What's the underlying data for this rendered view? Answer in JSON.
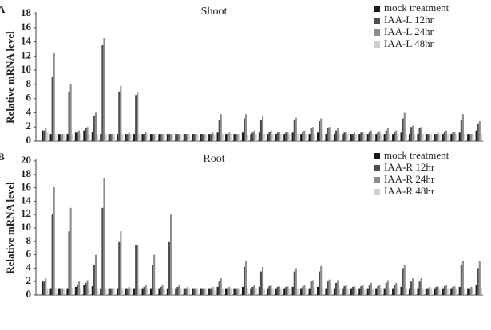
{
  "chart_data": [
    {
      "type": "bar",
      "panel": "A",
      "title": "Shoot",
      "y_label": "Relative mRNA level",
      "categories": [
        null,
        null,
        null,
        null,
        null,
        null,
        null,
        null,
        null,
        null,
        null,
        null,
        null,
        null,
        null,
        null,
        null,
        null,
        null,
        null,
        null,
        null,
        null,
        null,
        null,
        null,
        null,
        null,
        null,
        null,
        null,
        null,
        null,
        null,
        null,
        null,
        null,
        null,
        null,
        null,
        null,
        null,
        null,
        null,
        null,
        null,
        null,
        null,
        null,
        null,
        null,
        null,
        null
      ],
      "ylim": [
        0,
        18
      ],
      "yticks": [
        0,
        2,
        4,
        6,
        8,
        10,
        12,
        14,
        16,
        18
      ],
      "series": [
        {
          "name": "mock treatment",
          "color": "#1a1a1a",
          "values": [
            1.5,
            1,
            1,
            1,
            1.2,
            1.5,
            1.3,
            1,
            1,
            1,
            1,
            1,
            1,
            1,
            1,
            1,
            1,
            1,
            1,
            1,
            1,
            1.2,
            1,
            1,
            1.2,
            1,
            1.2,
            1,
            1,
            1,
            1.2,
            1,
            1,
            1.2,
            1,
            1,
            1,
            1,
            1,
            1,
            1,
            1,
            1,
            1.2,
            1,
            1,
            1,
            1,
            1,
            1,
            1.2,
            1,
            1.5
          ]
        },
        {
          "name": "IAA-L 12hr",
          "color": "#4d4d4d",
          "values": [
            1.5,
            9,
            1,
            7,
            1.2,
            1.8,
            3.5,
            13.5,
            1,
            7,
            1,
            6.5,
            1,
            1,
            1,
            1,
            1,
            1,
            1,
            1,
            1,
            3,
            1,
            1,
            3.2,
            1.2,
            3,
            1.3,
            1.2,
            1.2,
            3,
            1.3,
            1.8,
            2.8,
            1.8,
            1.5,
            1.2,
            1,
            1.2,
            1.3,
            1.2,
            1.5,
            1.3,
            3.2,
            2,
            1.8,
            1,
            1,
            1.3,
            1.2,
            3,
            1,
            2.5
          ]
        },
        {
          "name": "IAA-L 24hr",
          "color": "#8c8c8c",
          "values": [
            1.8,
            12.5,
            1,
            8,
            1.5,
            2,
            4,
            14.5,
            1,
            7.8,
            1.2,
            6.8,
            1.2,
            1,
            1,
            1,
            1,
            1,
            1,
            1,
            1.2,
            3.8,
            1.2,
            1,
            3.8,
            1.5,
            3.5,
            1.5,
            1.3,
            1.3,
            3.3,
            1.5,
            2,
            3.2,
            2,
            1.8,
            1.3,
            1.2,
            1.3,
            1.5,
            1.4,
            1.8,
            1.5,
            4,
            2.2,
            2,
            1,
            1.2,
            1.5,
            1.3,
            3.8,
            1,
            2.8
          ]
        },
        {
          "name": "IAA-L 48hr",
          "color": "#cfcfcf",
          "values": [
            1.2,
            1,
            1,
            1,
            1,
            1,
            1,
            1,
            1,
            1,
            1,
            1,
            1,
            1,
            1,
            1,
            1,
            1,
            1,
            1,
            1,
            1,
            1,
            1,
            1,
            1,
            1,
            1,
            1,
            1,
            1,
            1,
            1,
            1,
            1,
            1,
            1,
            1,
            1,
            1,
            1,
            1,
            1,
            1,
            1,
            1,
            1,
            1,
            1,
            1,
            1,
            1,
            1
          ]
        }
      ]
    },
    {
      "type": "bar",
      "panel": "B",
      "title": "Root",
      "y_label": "Relative mRNA level",
      "categories": [
        null,
        null,
        null,
        null,
        null,
        null,
        null,
        null,
        null,
        null,
        null,
        null,
        null,
        null,
        null,
        null,
        null,
        null,
        null,
        null,
        null,
        null,
        null,
        null,
        null,
        null,
        null,
        null,
        null,
        null,
        null,
        null,
        null,
        null,
        null,
        null,
        null,
        null,
        null,
        null,
        null,
        null,
        null,
        null,
        null,
        null,
        null,
        null,
        null,
        null,
        null,
        null,
        null
      ],
      "ylim": [
        0,
        20
      ],
      "yticks": [
        0,
        2,
        4,
        6,
        8,
        10,
        12,
        14,
        16,
        18,
        20
      ],
      "series": [
        {
          "name": "mock treatment",
          "color": "#1a1a1a",
          "values": [
            2,
            1,
            1,
            1,
            1.2,
            1.5,
            1.3,
            1,
            1,
            1,
            1,
            1,
            1,
            1,
            1,
            1,
            1,
            1,
            1,
            1,
            1,
            1.2,
            1,
            1,
            1.2,
            1,
            1.2,
            1,
            1,
            1,
            1.2,
            1,
            1,
            1.2,
            1,
            1,
            1,
            1,
            1,
            1,
            1,
            1,
            1,
            1.2,
            1,
            1,
            1,
            1,
            1,
            1,
            1.2,
            1,
            1.5
          ]
        },
        {
          "name": "IAA-R 12hr",
          "color": "#4d4d4d",
          "values": [
            2,
            12,
            1,
            9.5,
            1.5,
            1.8,
            4.5,
            13,
            1,
            8,
            1,
            7.5,
            1.2,
            4.5,
            1.2,
            8,
            1.2,
            1,
            1,
            1,
            1,
            2,
            1,
            1,
            4.2,
            1.2,
            3.5,
            1.3,
            1.2,
            1.2,
            3.5,
            1.2,
            2,
            3.5,
            2,
            1.8,
            1.3,
            1.2,
            1.3,
            1.5,
            1.3,
            1.8,
            1.5,
            4,
            2,
            2,
            1,
            1.2,
            1.3,
            1.2,
            4.5,
            1,
            4
          ]
        },
        {
          "name": "IAA-R 24hr",
          "color": "#8c8c8c",
          "values": [
            2.5,
            16.2,
            1,
            13,
            2,
            2.2,
            6,
            17.5,
            1,
            9.5,
            1.2,
            7.5,
            1.5,
            6,
            1.5,
            12,
            1.5,
            1.2,
            1,
            1,
            1.2,
            2.5,
            1.2,
            1,
            5,
            1.5,
            4.2,
            1.5,
            1.3,
            1.3,
            4,
            1.5,
            2.2,
            4.3,
            2.3,
            2.2,
            1.5,
            1.3,
            1.5,
            1.8,
            1.5,
            2.2,
            1.8,
            4.5,
            2.5,
            2.5,
            1.2,
            1.3,
            1.5,
            1.3,
            5,
            1.2,
            5
          ]
        },
        {
          "name": "IAA-R 48hr",
          "color": "#cfcfcf",
          "values": [
            1,
            1,
            1,
            1,
            1,
            1,
            1,
            1,
            1,
            1,
            1,
            1,
            1,
            1,
            1,
            1,
            1,
            1,
            1,
            1,
            1,
            1,
            1,
            1,
            1,
            1,
            1,
            1,
            1,
            1,
            1,
            1,
            1,
            1,
            1,
            1,
            1,
            1,
            1,
            1,
            1,
            1,
            1,
            1,
            1,
            1,
            1,
            1,
            1,
            1,
            1,
            1,
            1
          ]
        }
      ]
    }
  ]
}
